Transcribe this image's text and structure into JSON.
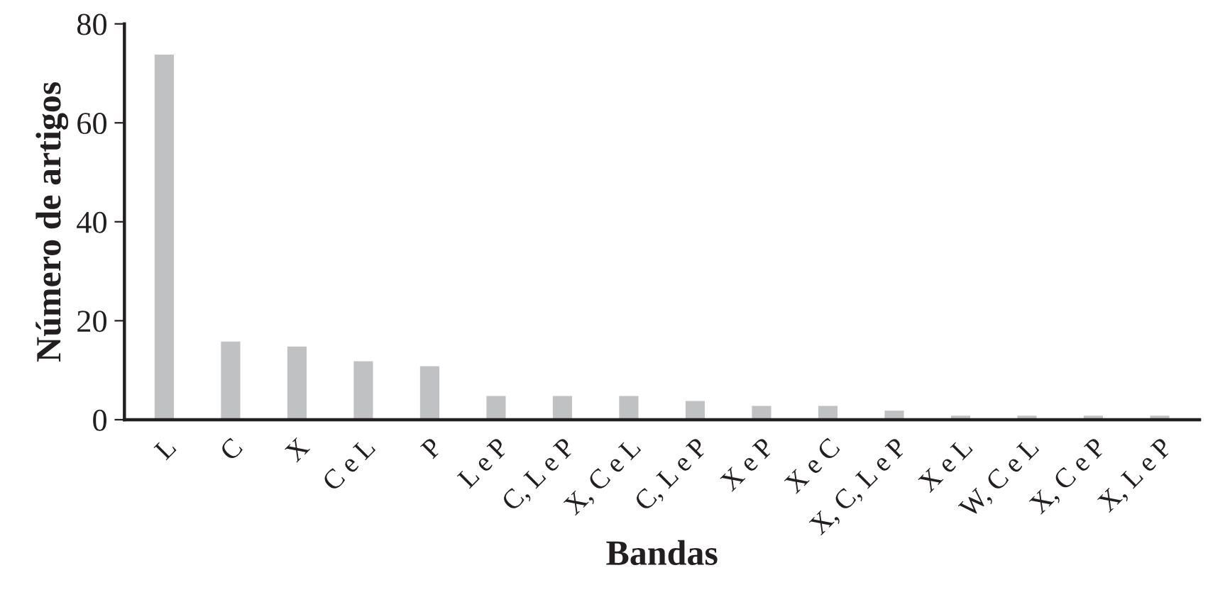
{
  "chart_data": {
    "type": "bar",
    "xlabel": "Bandas",
    "ylabel": "Número de artigos",
    "categories": [
      "L",
      "C",
      "X",
      "C e L",
      "P",
      "L e P",
      "C, L e P",
      "X, C e L",
      "C, L e P",
      "X e P",
      "X e C",
      "X, C, L e P",
      "X e L",
      "W, C e L",
      "X, C e P",
      "X, L e P"
    ],
    "values": [
      74,
      16,
      15,
      12,
      11,
      5,
      5,
      5,
      4,
      3,
      3,
      2,
      1,
      1,
      1,
      1
    ],
    "color": "#c0c1c3",
    "ylim": [
      0,
      80
    ],
    "yticks": [
      0,
      20,
      40,
      60,
      80
    ],
    "grid": false,
    "legend": false
  }
}
